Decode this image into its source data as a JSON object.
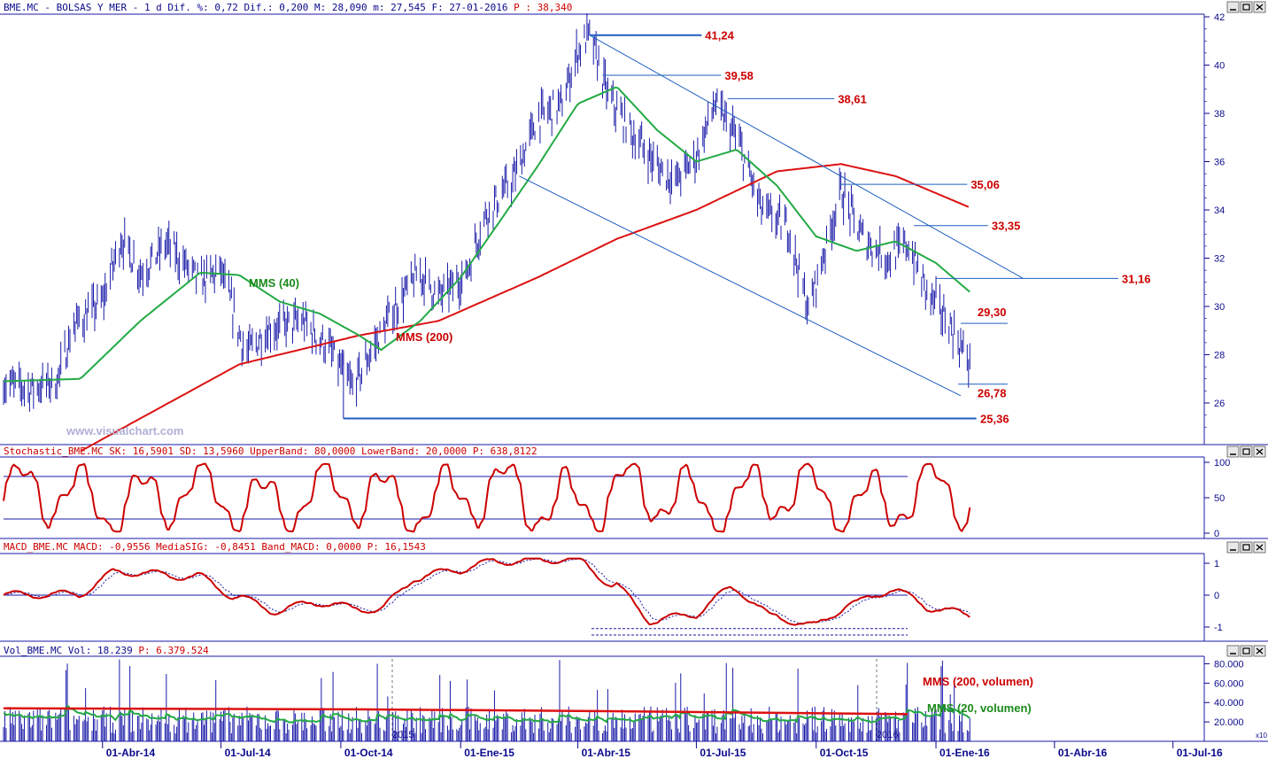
{
  "header": {
    "main": "BME.MC - BOLSAS Y MER -  1 d Dif. %: 0,72 Dif.: 0,200 M: 28,090 m: 27,545 F: 27-01-2016 ",
    "main_last": "P : 38,340",
    "stoch": "Stochastic_BME.MC SK: 16,5901 SD: 13,5960 UpperBand: 80,0000 LowerBand: 20,0000 ",
    "stoch_last": "P: 638,8122",
    "macd": "MACD_BME.MC MACD: -0,9556 MediaSIG: -0,8451 Band_MACD: 0,0000 ",
    "macd_last": "P: 16,1543",
    "vol": "Vol_BME.MC Vol: 18.239 ",
    "vol_last": "P: 6.379.524"
  },
  "watermark": "www.visualchart.com",
  "annotations": {
    "mms40": "MMS (40)",
    "mms200": "MMS (200)",
    "vol_mms200": "MMS (200, volumen)",
    "vol_mms20": "MMS (20, volumen)"
  },
  "x_axis_labels": [
    "01-Abr-14",
    "01-Jul-14",
    "01-Oct-14",
    "01-Ene-15",
    "01-Abr-15",
    "01-Jul-15",
    "01-Oct-15",
    "01-Ene-16",
    "01-Abr-16",
    "01-Jul-16"
  ],
  "year_markers": [
    "2015",
    "2016"
  ],
  "vol_unit": "x10",
  "colors": {
    "price_bars": "#1a1aa8",
    "mms40": "#22aa44",
    "mms200": "#dd1111",
    "trendlines": "#1e5fbf",
    "levels": "#cc0000",
    "axis_text": "#0a0a8c"
  },
  "chart_data": [
    {
      "type": "line",
      "name": "price",
      "title": "BME.MC - BOLSAS Y MER",
      "x_range": [
        "2014-01-15",
        "2016-07-25"
      ],
      "ylim": [
        25,
        42
      ],
      "y_ticks": [
        26,
        28,
        30,
        32,
        34,
        36,
        38,
        40,
        42
      ],
      "close_approx": [
        [
          "2014-01-15",
          26.8
        ],
        [
          "2014-02-05",
          26.6
        ],
        [
          "2014-02-25",
          26.9
        ],
        [
          "2014-03-10",
          29.2
        ],
        [
          "2014-04-01",
          30.2
        ],
        [
          "2014-04-15",
          32.8
        ],
        [
          "2014-05-01",
          31.4
        ],
        [
          "2014-05-20",
          32.6
        ],
        [
          "2014-06-15",
          31.0
        ],
        [
          "2014-07-01",
          31.5
        ],
        [
          "2014-07-20",
          28.0
        ],
        [
          "2014-08-05",
          29.0
        ],
        [
          "2014-09-01",
          29.4
        ],
        [
          "2014-09-20",
          28.4
        ],
        [
          "2014-10-10",
          26.6
        ],
        [
          "2014-10-25",
          28.2
        ],
        [
          "2014-11-10",
          29.8
        ],
        [
          "2014-11-30",
          31.4
        ],
        [
          "2014-12-15",
          30.4
        ],
        [
          "2015-01-05",
          31.3
        ],
        [
          "2015-01-20",
          33.8
        ],
        [
          "2015-02-10",
          35.2
        ],
        [
          "2015-03-01",
          37.8
        ],
        [
          "2015-03-20",
          38.4
        ],
        [
          "2015-04-01",
          40.6
        ],
        [
          "2015-04-10",
          41.24
        ],
        [
          "2015-04-25",
          38.6
        ],
        [
          "2015-05-15",
          37.0
        ],
        [
          "2015-06-01",
          35.8
        ],
        [
          "2015-06-15",
          35.2
        ],
        [
          "2015-07-01",
          36.2
        ],
        [
          "2015-07-15",
          38.4
        ],
        [
          "2015-08-01",
          37.0
        ],
        [
          "2015-08-20",
          34.0
        ],
        [
          "2015-09-10",
          33.2
        ],
        [
          "2015-09-25",
          29.8
        ],
        [
          "2015-10-10",
          32.8
        ],
        [
          "2015-10-20",
          34.8
        ],
        [
          "2015-11-05",
          32.9
        ],
        [
          "2015-11-25",
          32.0
        ],
        [
          "2015-12-10",
          32.6
        ],
        [
          "2015-12-25",
          30.6
        ],
        [
          "2016-01-10",
          29.4
        ],
        [
          "2016-01-27",
          27.6
        ]
      ],
      "mms40_approx": [
        [
          "2014-01-15",
          26.9
        ],
        [
          "2014-03-15",
          27.0
        ],
        [
          "2014-04-30",
          29.4
        ],
        [
          "2014-06-15",
          31.4
        ],
        [
          "2014-07-15",
          31.3
        ],
        [
          "2014-08-15",
          30.2
        ],
        [
          "2014-09-15",
          29.7
        ],
        [
          "2014-10-15",
          28.8
        ],
        [
          "2014-11-01",
          28.2
        ],
        [
          "2014-12-01",
          29.4
        ],
        [
          "2015-01-01",
          31.2
        ],
        [
          "2015-02-01",
          33.6
        ],
        [
          "2015-03-01",
          35.8
        ],
        [
          "2015-04-01",
          38.4
        ],
        [
          "2015-05-01",
          39.1
        ],
        [
          "2015-06-01",
          37.3
        ],
        [
          "2015-07-01",
          36.0
        ],
        [
          "2015-08-01",
          36.5
        ],
        [
          "2015-09-01",
          35.0
        ],
        [
          "2015-10-01",
          32.9
        ],
        [
          "2015-11-01",
          32.3
        ],
        [
          "2015-12-01",
          32.7
        ],
        [
          "2016-01-01",
          31.8
        ],
        [
          "2016-01-27",
          30.6
        ]
      ],
      "mms200_approx": [
        [
          "2014-03-15",
          24.0
        ],
        [
          "2014-07-15",
          27.6
        ],
        [
          "2014-10-15",
          28.8
        ],
        [
          "2014-12-15",
          29.4
        ],
        [
          "2015-03-01",
          31.2
        ],
        [
          "2015-05-01",
          32.8
        ],
        [
          "2015-07-01",
          34.0
        ],
        [
          "2015-09-01",
          35.6
        ],
        [
          "2015-10-20",
          35.9
        ],
        [
          "2015-12-01",
          35.4
        ],
        [
          "2016-01-27",
          34.1
        ]
      ],
      "levels": [
        41.24,
        39.58,
        38.61,
        35.06,
        33.35,
        31.16,
        29.3,
        26.78,
        25.36
      ],
      "annotations": [
        "MMS (40)",
        "MMS (200)"
      ]
    },
    {
      "type": "line",
      "name": "Stochastic_BME.MC",
      "ylim": [
        0,
        100
      ],
      "y_ticks": [
        0,
        50,
        100
      ],
      "bands": [
        20,
        80
      ],
      "values": {
        "SK": 16.5901,
        "SD": 13.596
      }
    },
    {
      "type": "line",
      "name": "MACD_BME.MC",
      "ylim": [
        -1.5,
        1.3
      ],
      "y_ticks": [
        -1,
        0,
        1
      ],
      "values": {
        "MACD": -0.9556,
        "MediaSIG": -0.8451,
        "Band_MACD": 0
      }
    },
    {
      "type": "bar",
      "name": "Vol_BME.MC",
      "ylim": [
        0,
        85000
      ],
      "y_ticks": [
        "20.000",
        "40.000",
        "60.000",
        "80.000"
      ],
      "last": 18239,
      "series_labels": [
        "MMS (200, volumen)",
        "MMS (20, volumen)"
      ]
    }
  ]
}
